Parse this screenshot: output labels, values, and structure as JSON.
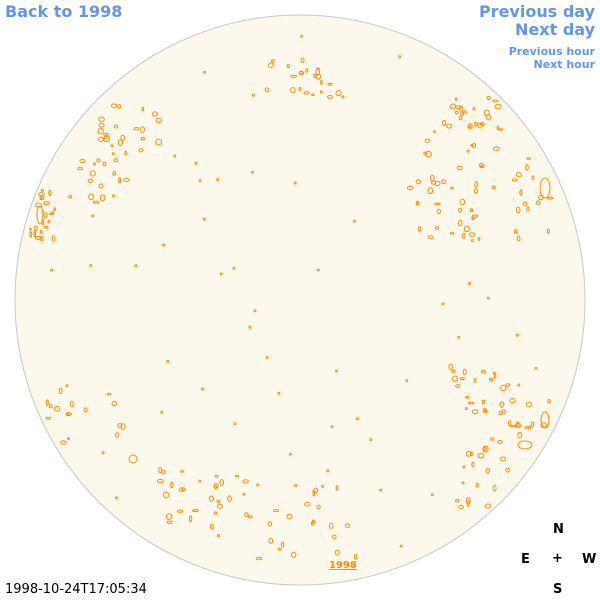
{
  "nav": {
    "back_label": "Back to 1998",
    "prev_day_label": "Previous day",
    "next_day_label": "Next day",
    "prev_hour_label": "Previous hour",
    "next_hour_label": "Next hour"
  },
  "year_link_label": "1998",
  "timestamp": "1998-10-24T17:05:34",
  "compass": {
    "north": "N",
    "east": "E",
    "center": "+",
    "west": "W",
    "south": "S"
  },
  "colors": {
    "disk_fill": "#fdf8ec",
    "disk_border": "#c8c8c8",
    "contour": "#ff8c00",
    "nav_link": "#6495ed"
  }
}
